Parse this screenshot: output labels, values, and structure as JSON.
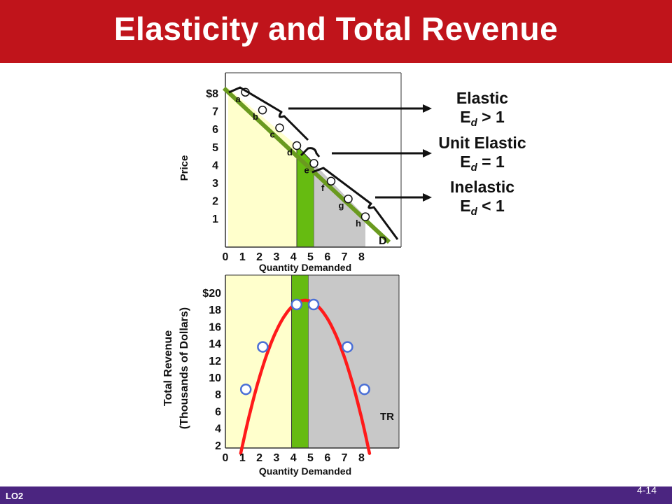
{
  "slide": {
    "title": "Elasticity and Total Revenue",
    "lo_label": "LO2",
    "slide_number": "4-14"
  },
  "annotations": [
    {
      "line1": "Elastic",
      "sym": "E",
      "sub": "d",
      "rel": " > 1"
    },
    {
      "line1": "Unit Elastic",
      "sym": "E",
      "sub": "d",
      "rel": " = 1"
    },
    {
      "line1": "Inelastic",
      "sym": "E",
      "sub": "d",
      "rel": " < 1"
    }
  ],
  "colors": {
    "title_bg": "#c0141b",
    "footer_bg": "#4b2580",
    "elastic_area": "#ffffcc",
    "unit_area": "#66bb11",
    "inelastic_area": "#c8c8c8",
    "demand_line": "#6a9a1f",
    "tr_curve": "#ff1a1a",
    "tr_points": "#4a6fd6"
  },
  "chart_data": [
    {
      "type": "line",
      "ylabel": "Price",
      "xlabel": "Quantity Demanded",
      "x_ticks": [
        "0",
        "1",
        "2",
        "3",
        "4",
        "5",
        "6",
        "7",
        "8"
      ],
      "y_ticks": [
        "$8",
        "7",
        "6",
        "5",
        "4",
        "3",
        "2",
        "1"
      ],
      "xlim": [
        0,
        8
      ],
      "ylim": [
        0,
        8
      ],
      "line_label": "D",
      "points": [
        {
          "label": "a",
          "x": 1,
          "y": 8
        },
        {
          "label": "b",
          "x": 2,
          "y": 7
        },
        {
          "label": "c",
          "x": 3,
          "y": 6
        },
        {
          "label": "d",
          "x": 4,
          "y": 5
        },
        {
          "label": "e",
          "x": 5,
          "y": 4
        },
        {
          "label": "f",
          "x": 6,
          "y": 3
        },
        {
          "label": "g",
          "x": 7,
          "y": 2
        },
        {
          "label": "h",
          "x": 8,
          "y": 1
        }
      ],
      "regions": [
        {
          "name": "elastic",
          "x_range": [
            0,
            4
          ]
        },
        {
          "name": "unit-elastic",
          "x_range": [
            4,
            5
          ]
        },
        {
          "name": "inelastic",
          "x_range": [
            5,
            8
          ]
        }
      ]
    },
    {
      "type": "line",
      "ylabel_lines": [
        "Total Revenue",
        "(Thousands of Dollars)"
      ],
      "xlabel": "Quantity Demanded",
      "x_ticks": [
        "0",
        "1",
        "2",
        "3",
        "4",
        "5",
        "6",
        "7",
        "8"
      ],
      "y_ticks": [
        "$20",
        "18",
        "16",
        "14",
        "12",
        "10",
        "8",
        "6",
        "4",
        "2"
      ],
      "xlim": [
        0,
        8
      ],
      "ylim": [
        0,
        22
      ],
      "series": [
        {
          "name": "TR",
          "x": [
            1,
            2,
            3,
            4,
            5,
            6,
            7,
            8
          ],
          "values": [
            8,
            14,
            18,
            20,
            20,
            18,
            14,
            8
          ]
        }
      ],
      "plotted_points": [
        {
          "x": 1,
          "y": 8
        },
        {
          "x": 2,
          "y": 14
        },
        {
          "x": 4,
          "y": 20
        },
        {
          "x": 5,
          "y": 20
        },
        {
          "x": 7,
          "y": 14
        },
        {
          "x": 8,
          "y": 8
        }
      ]
    }
  ]
}
